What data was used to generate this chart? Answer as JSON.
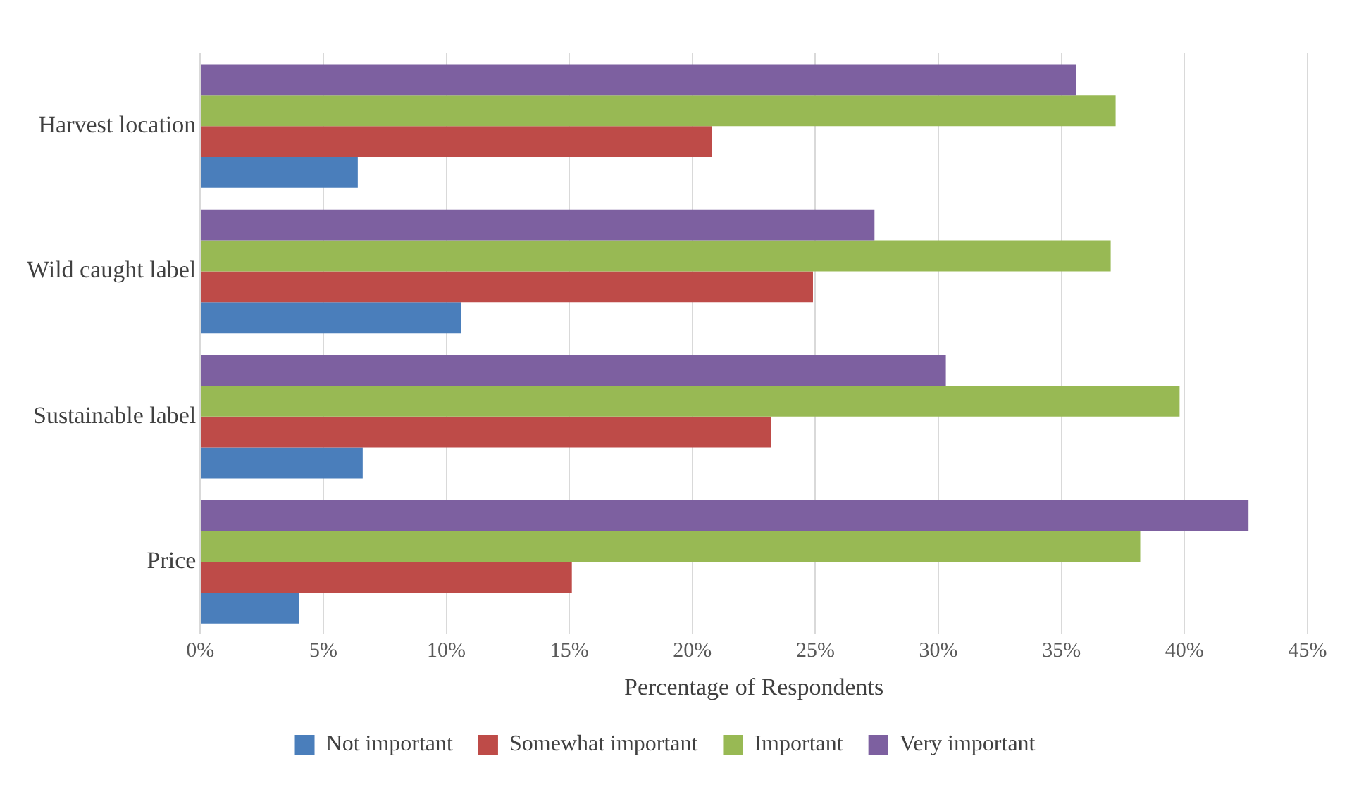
{
  "chart_data": {
    "type": "bar",
    "orientation": "horizontal",
    "xlabel": "Percentage of Respondents",
    "categories": [
      "Harvest location",
      "Wild caught label",
      "Sustainable label",
      "Price"
    ],
    "series": [
      {
        "name": "Not important",
        "color": "#4a7ebb",
        "values": [
          6.4,
          10.6,
          6.6,
          4.0
        ]
      },
      {
        "name": "Somewhat important",
        "color": "#be4b48",
        "values": [
          20.8,
          24.9,
          23.2,
          15.1
        ]
      },
      {
        "name": "Important",
        "color": "#98b954",
        "values": [
          37.2,
          37.0,
          39.8,
          38.2
        ]
      },
      {
        "name": "Very important",
        "color": "#7d60a0",
        "values": [
          35.6,
          27.4,
          30.3,
          42.6
        ]
      }
    ],
    "xlim": [
      0,
      45
    ],
    "xticks": [
      {
        "value": 0,
        "label": "0%"
      },
      {
        "value": 5,
        "label": "5%"
      },
      {
        "value": 10,
        "label": "10%"
      },
      {
        "value": 15,
        "label": "15%"
      },
      {
        "value": 20,
        "label": "20%"
      },
      {
        "value": 25,
        "label": "25%"
      },
      {
        "value": 30,
        "label": "30%"
      },
      {
        "value": 35,
        "label": "35%"
      },
      {
        "value": 40,
        "label": "40%"
      },
      {
        "value": 45,
        "label": "45%"
      }
    ],
    "grid": "x",
    "legend": "bottom"
  }
}
